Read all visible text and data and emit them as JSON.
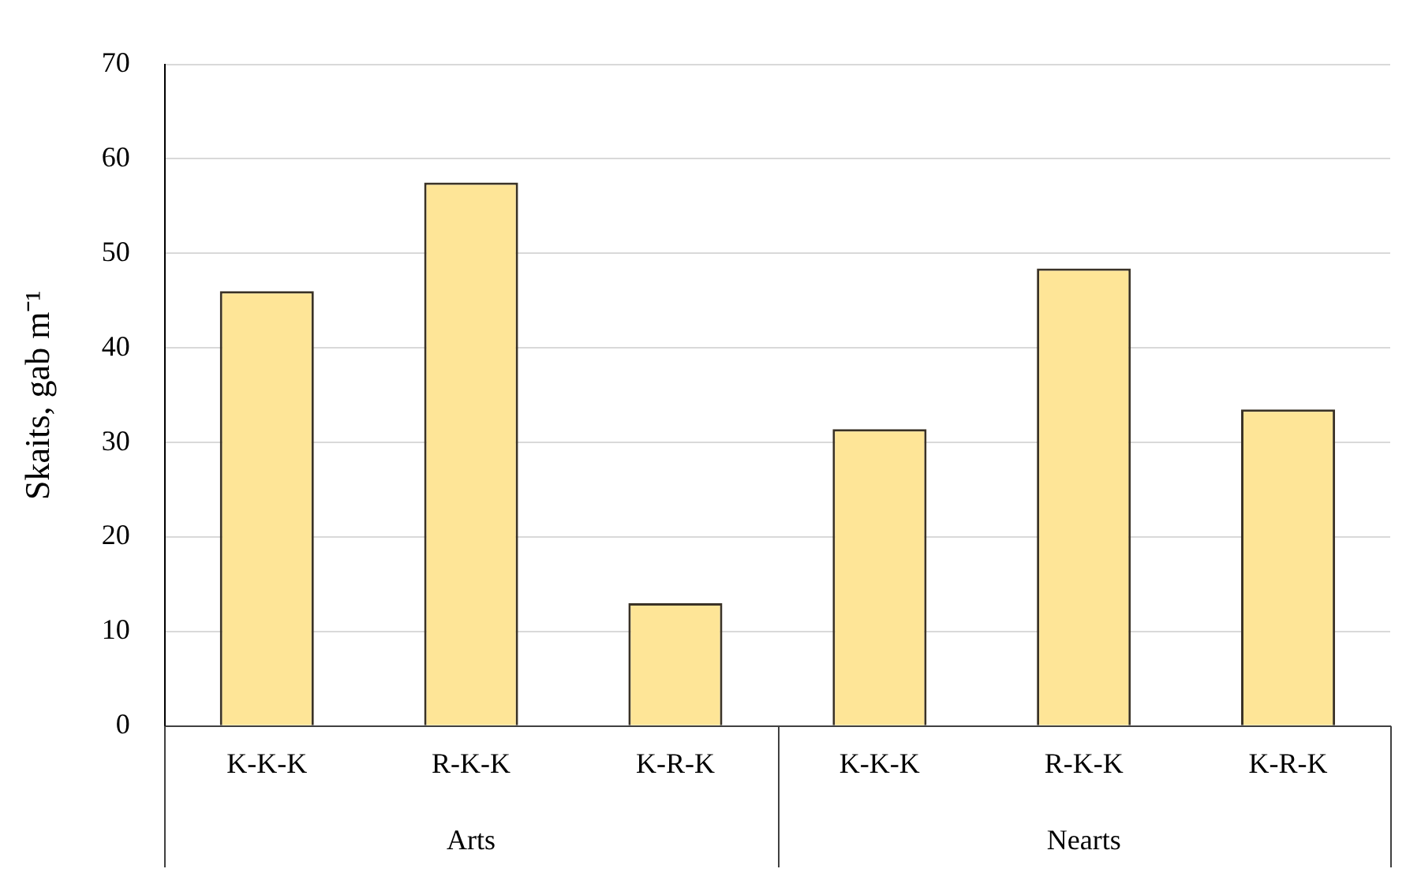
{
  "chart_data": {
    "type": "bar",
    "ylabel": "Skaits, gab m⁻¹",
    "categories": [
      "K-K-K",
      "R-K-K",
      "K-R-K",
      "K-K-K",
      "R-K-K",
      "K-R-K"
    ],
    "values": [
      46,
      57.5,
      13,
      31.4,
      48.4,
      33.5
    ],
    "color": "#fee597",
    "ylim": [
      0,
      70
    ],
    "yticks": [
      0,
      10,
      20,
      30,
      40,
      50,
      60,
      70
    ],
    "grid": "y",
    "annotations": [
      "Arts",
      "Nearts"
    ]
  }
}
